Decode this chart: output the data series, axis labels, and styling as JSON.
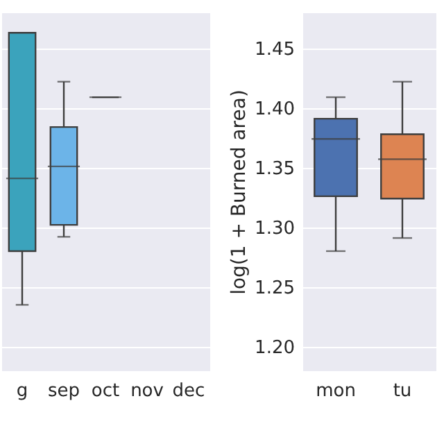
{
  "chart_data": [
    {
      "type": "box",
      "categories": [
        "g",
        "sep",
        "oct",
        "nov",
        "dec"
      ],
      "boxes": [
        {
          "low": 1.235,
          "q1": 1.28,
          "median": 1.341,
          "q3": 1.463,
          "high": 1.463
        },
        {
          "low": 1.292,
          "q1": 1.302,
          "median": 1.351,
          "q3": 1.384,
          "high": 1.422
        },
        {
          "low": 1.409,
          "q1": 1.409,
          "median": 1.409,
          "q3": 1.409,
          "high": 1.409
        },
        null,
        null
      ],
      "colors": [
        "#3ba3bc",
        "#6cb4e8",
        "#3d3d3d",
        "#4c72b0",
        "#4c72b0"
      ],
      "ylim": [
        1.18,
        1.48
      ],
      "yticks": [
        1.2,
        1.25,
        1.3,
        1.35,
        1.4,
        1.45
      ],
      "grid": "y",
      "tick_labels": "x"
    },
    {
      "type": "box",
      "categories": [
        "mon",
        "tu"
      ],
      "ylabel": "log(1 + Burned area)",
      "boxes": [
        {
          "low": 1.28,
          "q1": 1.326,
          "median": 1.374,
          "q3": 1.391,
          "high": 1.409
        },
        {
          "low": 1.291,
          "q1": 1.324,
          "median": 1.357,
          "q3": 1.378,
          "high": 1.422
        }
      ],
      "colors": [
        "#4c72b0",
        "#dd8452"
      ],
      "ylim": [
        1.18,
        1.48
      ],
      "yticks": [
        {
          "value": 1.2,
          "label": "1.20"
        },
        {
          "value": 1.25,
          "label": "1.25"
        },
        {
          "value": 1.3,
          "label": "1.30"
        },
        {
          "value": 1.35,
          "label": "1.35"
        },
        {
          "value": 1.4,
          "label": "1.40"
        },
        {
          "value": 1.45,
          "label": "1.45"
        }
      ],
      "grid": "y"
    }
  ]
}
